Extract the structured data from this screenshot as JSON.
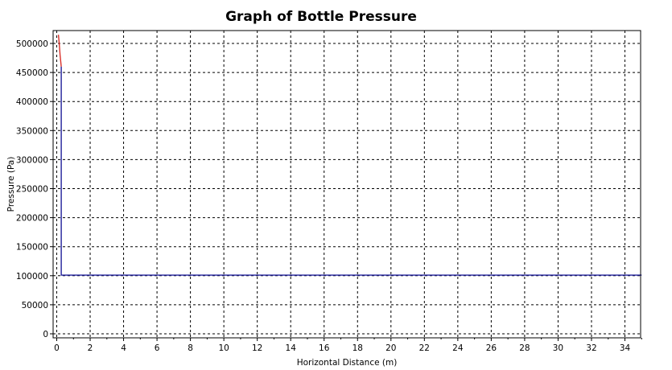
{
  "chart_data": {
    "type": "line",
    "title": "Graph of Bottle Pressure",
    "xlabel": "Horizontal Distance (m)",
    "ylabel": "Pressure (Pa)",
    "xlim": [
      0,
      35
    ],
    "ylim": [
      0,
      520000
    ],
    "x_ticks": [
      0,
      2,
      4,
      6,
      8,
      10,
      12,
      14,
      16,
      18,
      20,
      22,
      24,
      26,
      28,
      30,
      32,
      34
    ],
    "y_ticks": [
      0,
      50000,
      100000,
      150000,
      200000,
      250000,
      300000,
      350000,
      400000,
      450000,
      500000
    ],
    "grid": true,
    "series": [
      {
        "color": "#d9312b",
        "x": [
          0.1,
          0.15,
          0.2,
          0.27
        ],
        "y": [
          515000,
          500000,
          480000,
          460000
        ]
      },
      {
        "color": "#1f1f9a",
        "x": [
          0.27,
          0.27,
          0.35,
          5,
          10,
          15,
          20,
          25,
          30,
          35
        ],
        "y": [
          460000,
          101000,
          101000,
          101000,
          101000,
          101000,
          101000,
          101000,
          101000,
          101000
        ]
      }
    ]
  }
}
